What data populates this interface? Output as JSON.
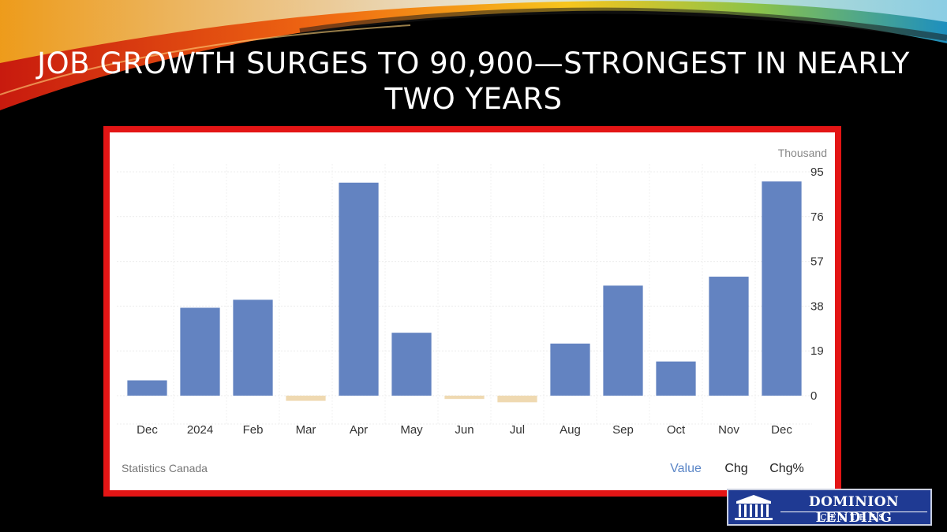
{
  "slide": {
    "title": "JOB GROWTH SURGES TO 90,900—STRONGEST IN NEARLY TWO YEARS"
  },
  "chart_data": {
    "type": "bar",
    "unit": "Thousand",
    "categories": [
      "Dec",
      "2024",
      "Feb",
      "Mar",
      "Apr",
      "May",
      "Jun",
      "Jul",
      "Aug",
      "Sep",
      "Oct",
      "Nov",
      "Dec"
    ],
    "values": [
      6.5,
      37.3,
      40.7,
      -2.2,
      90.4,
      26.7,
      -1.4,
      -2.8,
      22.1,
      46.7,
      14.5,
      50.5,
      90.9
    ],
    "yticks": [
      0,
      19,
      38,
      57,
      76,
      95
    ],
    "ylim": [
      -9,
      98
    ],
    "grid": true,
    "positive_color": "#6383c1",
    "negative_color": "#efd9b1",
    "source": "Statistics Canada",
    "toggles": [
      "Value",
      "Chg",
      "Chg%"
    ],
    "active_toggle": "Value"
  },
  "logo": {
    "line1": "DOMINION LENDING",
    "line2": "CENTRES"
  },
  "colors": {
    "frame": "#e31515",
    "logo_bg": "#1f3a93"
  }
}
